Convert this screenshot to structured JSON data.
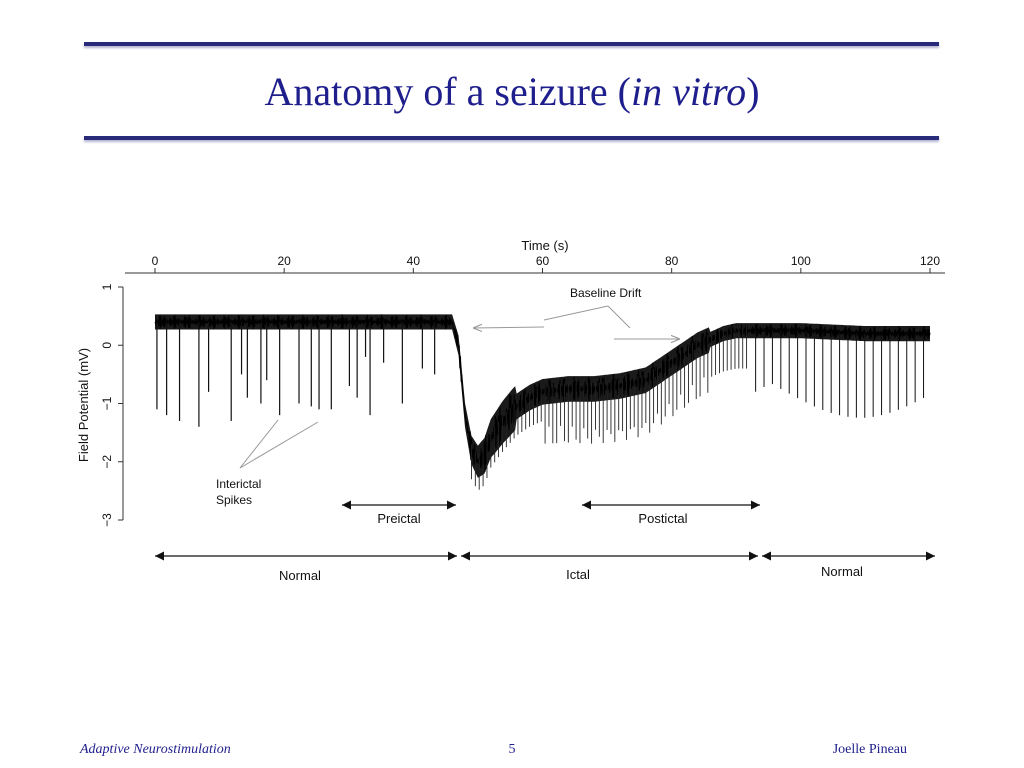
{
  "slide": {
    "title_main": "Anatomy of a seizure (",
    "title_italic": "in vitro",
    "title_close": ")",
    "rule_color": "#2a2a7a",
    "title_color": "#1e1e8c"
  },
  "footer": {
    "left": "Adaptive Neurostimulation",
    "page": "5",
    "right": "Joelle Pineau"
  },
  "chart_data": {
    "type": "line",
    "title": "",
    "xlabel": "Time (s)",
    "ylabel": "Field Potential (mV)",
    "x_axis_position": "top",
    "xlim": [
      0,
      120
    ],
    "ylim": [
      -3,
      1
    ],
    "xticks": [
      0,
      20,
      40,
      60,
      80,
      100,
      120
    ],
    "yticks": [
      1,
      0,
      -1,
      -2,
      -3
    ],
    "grid": false,
    "line_color": "#111111",
    "series": [
      {
        "baseline": {
          "x": [
            0,
            46,
            47,
            48,
            49,
            50,
            51,
            52,
            54,
            56,
            58,
            60,
            64,
            68,
            72,
            76,
            80,
            84,
            86,
            88,
            90,
            92,
            96,
            100,
            110,
            120
          ],
          "y": [
            0.4,
            0.4,
            0.0,
            -1.2,
            -1.8,
            -2.0,
            -1.9,
            -1.6,
            -1.3,
            -1.05,
            -0.9,
            -0.8,
            -0.75,
            -0.75,
            -0.7,
            -0.6,
            -0.3,
            0.0,
            0.1,
            0.2,
            0.25,
            0.25,
            0.25,
            0.25,
            0.2,
            0.2
          ]
        },
        "spikes": [
          {
            "t": 0.3,
            "v": -1.1
          },
          {
            "t": 1.8,
            "v": -1.2
          },
          {
            "t": 3.8,
            "v": -1.3
          },
          {
            "t": 6.8,
            "v": -1.4
          },
          {
            "t": 8.3,
            "v": -0.8
          },
          {
            "t": 11.8,
            "v": -1.3
          },
          {
            "t": 13.4,
            "v": -0.5
          },
          {
            "t": 14.3,
            "v": -0.9
          },
          {
            "t": 16.4,
            "v": -1.0
          },
          {
            "t": 17.3,
            "v": -0.6
          },
          {
            "t": 19.3,
            "v": -1.2
          },
          {
            "t": 22.3,
            "v": -1.0
          },
          {
            "t": 24.2,
            "v": -1.05
          },
          {
            "t": 25.4,
            "v": -1.1
          },
          {
            "t": 27.3,
            "v": -1.1
          },
          {
            "t": 30.1,
            "v": -0.7
          },
          {
            "t": 31.3,
            "v": -0.9
          },
          {
            "t": 32.6,
            "v": -0.2
          },
          {
            "t": 33.3,
            "v": -1.2
          },
          {
            "t": 35.4,
            "v": -0.3
          },
          {
            "t": 38.3,
            "v": -1.0
          },
          {
            "t": 41.4,
            "v": -0.4
          },
          {
            "t": 43.3,
            "v": -0.5
          }
        ]
      }
    ],
    "annotations": [
      {
        "text": "Baseline Drift",
        "x": 72,
        "y": 0.8
      },
      {
        "text": "Interictal",
        "x": 10,
        "y": -2.35
      },
      {
        "text": "Spikes",
        "x": 10,
        "y": -2.65
      }
    ],
    "phase_labels": {
      "upper": [
        {
          "label": "Preictal",
          "from": 28,
          "to": 47
        },
        {
          "label": "Postictal",
          "from": 66,
          "to": 93
        }
      ],
      "lower": [
        {
          "label": "Normal",
          "from": 0,
          "to": 47
        },
        {
          "label": "Ictal",
          "from": 47,
          "to": 93
        },
        {
          "label": "Normal",
          "from": 93,
          "to": 120
        }
      ]
    }
  }
}
